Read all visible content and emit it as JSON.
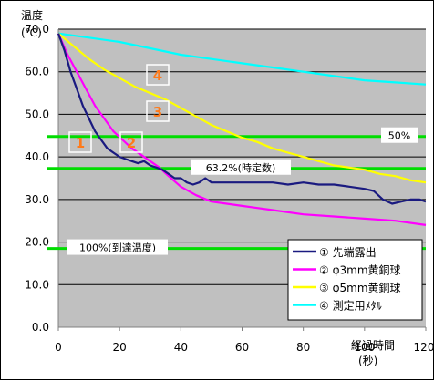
{
  "chart_data": {
    "type": "line",
    "title": "",
    "ylabel": "温度",
    "yunit": "(℃)",
    "xlabel": "経過時間",
    "xunit": "(秒)",
    "xlim": [
      0,
      120
    ],
    "ylim": [
      0,
      70
    ],
    "xticks": [
      "0",
      "20",
      "40",
      "60",
      "80",
      "100",
      "120"
    ],
    "yticks": [
      "0.0",
      "10.0",
      "20.0",
      "30.0",
      "40.0",
      "50.0",
      "60.0",
      "70.0"
    ],
    "grid": true,
    "legend_position": "bottom-right",
    "plot_background": "#c0c0c0",
    "series": [
      {
        "name": "① 先端露出",
        "marker": "1",
        "color": "#1a1a80",
        "points": [
          [
            0,
            69
          ],
          [
            2,
            65
          ],
          [
            4,
            60
          ],
          [
            6,
            56
          ],
          [
            8,
            52
          ],
          [
            10,
            49
          ],
          [
            12,
            46
          ],
          [
            14,
            44
          ],
          [
            16,
            42
          ],
          [
            18,
            41
          ],
          [
            20,
            40
          ],
          [
            22,
            39.5
          ],
          [
            24,
            39
          ],
          [
            26,
            38.5
          ],
          [
            28,
            39
          ],
          [
            30,
            38
          ],
          [
            32,
            37.5
          ],
          [
            34,
            37
          ],
          [
            36,
            36
          ],
          [
            38,
            35
          ],
          [
            40,
            35
          ],
          [
            42,
            34
          ],
          [
            44,
            33.5
          ],
          [
            46,
            34
          ],
          [
            48,
            35
          ],
          [
            50,
            34
          ],
          [
            52,
            34
          ],
          [
            55,
            34
          ],
          [
            60,
            34
          ],
          [
            65,
            34
          ],
          [
            70,
            34
          ],
          [
            75,
            33.5
          ],
          [
            80,
            34
          ],
          [
            85,
            33.5
          ],
          [
            90,
            33.5
          ],
          [
            95,
            33
          ],
          [
            100,
            32.5
          ],
          [
            103,
            32
          ],
          [
            106,
            30
          ],
          [
            109,
            29
          ],
          [
            112,
            29.5
          ],
          [
            115,
            30
          ],
          [
            118,
            30
          ],
          [
            120,
            29.5
          ]
        ]
      },
      {
        "name": "② φ3mm黄銅球",
        "marker": "2",
        "color": "#ff00ff",
        "points": [
          [
            0,
            69
          ],
          [
            3,
            64
          ],
          [
            6,
            60
          ],
          [
            9,
            56
          ],
          [
            12,
            52
          ],
          [
            15,
            49
          ],
          [
            18,
            46
          ],
          [
            21,
            44
          ],
          [
            24,
            42
          ],
          [
            27,
            40.5
          ],
          [
            30,
            39
          ],
          [
            33,
            37.5
          ],
          [
            36,
            35.5
          ],
          [
            40,
            33
          ],
          [
            45,
            31
          ],
          [
            50,
            29.5
          ],
          [
            55,
            29
          ],
          [
            60,
            28.5
          ],
          [
            65,
            28
          ],
          [
            70,
            27.5
          ],
          [
            80,
            26.5
          ],
          [
            90,
            26
          ],
          [
            100,
            25.5
          ],
          [
            110,
            25
          ],
          [
            120,
            24
          ]
        ]
      },
      {
        "name": "③ φ5mm黄銅球",
        "marker": "3",
        "color": "#ffff00",
        "points": [
          [
            0,
            69
          ],
          [
            5,
            66
          ],
          [
            10,
            63
          ],
          [
            15,
            60.5
          ],
          [
            20,
            58.5
          ],
          [
            25,
            56.5
          ],
          [
            30,
            55
          ],
          [
            35,
            53.5
          ],
          [
            40,
            51.5
          ],
          [
            45,
            49.5
          ],
          [
            50,
            47.5
          ],
          [
            55,
            46
          ],
          [
            60,
            44.5
          ],
          [
            65,
            43.5
          ],
          [
            70,
            42
          ],
          [
            75,
            41
          ],
          [
            80,
            40
          ],
          [
            85,
            39
          ],
          [
            90,
            38
          ],
          [
            95,
            37.5
          ],
          [
            100,
            37
          ],
          [
            105,
            36
          ],
          [
            110,
            35.5
          ],
          [
            115,
            34.5
          ],
          [
            120,
            34
          ]
        ]
      },
      {
        "name": "④ 測定用ﾒﾀﾙ",
        "marker": "4",
        "color": "#00ffff",
        "points": [
          [
            0,
            69
          ],
          [
            10,
            68
          ],
          [
            20,
            67
          ],
          [
            30,
            65.5
          ],
          [
            40,
            64
          ],
          [
            50,
            63
          ],
          [
            60,
            62
          ],
          [
            70,
            61
          ],
          [
            80,
            60
          ],
          [
            90,
            59
          ],
          [
            100,
            58
          ],
          [
            110,
            57.5
          ],
          [
            120,
            57
          ]
        ]
      }
    ],
    "reference_lines": [
      {
        "y": 44.8,
        "label": "50%",
        "color": "#00dd00"
      },
      {
        "y": 37.3,
        "label": "63.2%(時定数)",
        "color": "#00dd00"
      },
      {
        "y": 18.5,
        "label": "100%(到達温度)",
        "color": "#00dd00"
      }
    ]
  }
}
